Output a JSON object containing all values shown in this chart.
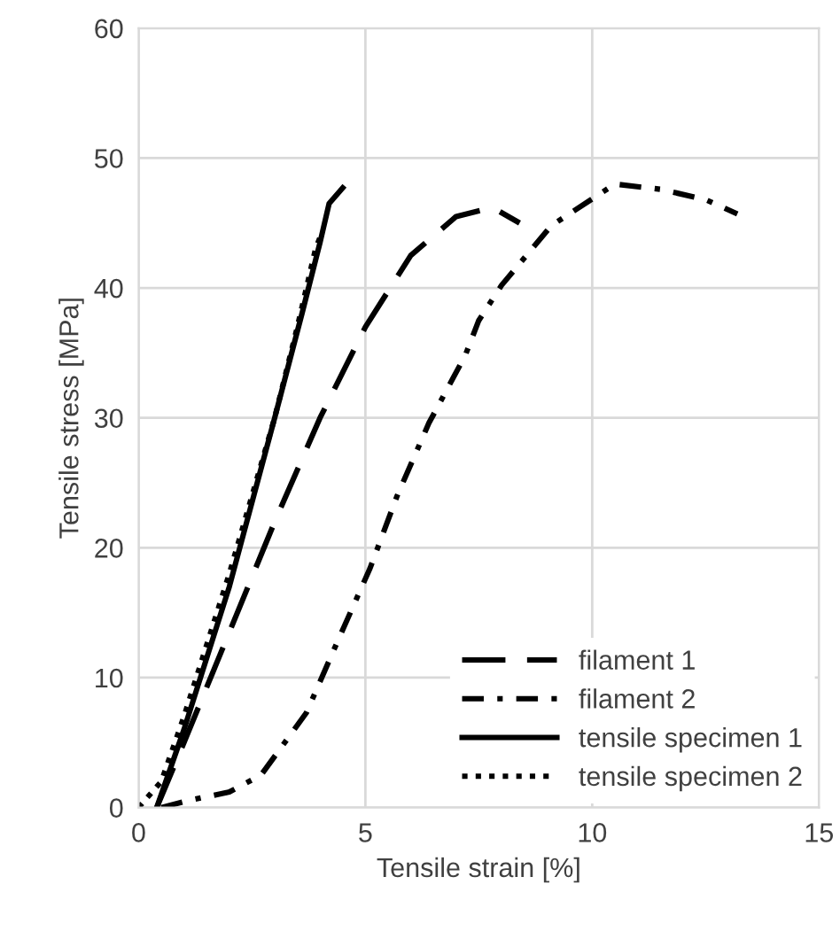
{
  "chart_data": {
    "type": "line",
    "xlabel": "Tensile strain [%]",
    "ylabel": "Tensile stress [MPa]",
    "xlim": [
      0,
      15
    ],
    "xticks": [
      0,
      5,
      10,
      15
    ],
    "ylim": [
      0,
      60
    ],
    "yticks": [
      0,
      10,
      20,
      30,
      40,
      50,
      60
    ],
    "grid": true,
    "legend": "bottom right",
    "series": [
      {
        "name": "filament 1",
        "color": "#000000",
        "line_style": "dashed",
        "x": [
          0.4,
          1,
          2,
          3,
          4,
          5,
          6,
          7,
          7.8,
          8.4
        ],
        "values": [
          0,
          5,
          13.5,
          22,
          30,
          37,
          42.5,
          45.5,
          46.2,
          45
        ]
      },
      {
        "name": "filament 2",
        "color": "#000000",
        "line_style": "dashdot",
        "x": [
          0.5,
          1.05,
          2,
          2.7,
          3.7,
          4.4,
          5.1,
          5.7,
          6.4,
          7.2,
          7.5,
          8.0,
          9.1,
          10.5,
          11.5,
          12.5,
          13.2
        ],
        "values": [
          0,
          0.5,
          1.2,
          2.5,
          7.3,
          12.9,
          18.4,
          24,
          29.6,
          34.8,
          37.5,
          40.2,
          44.8,
          48,
          47.6,
          46.8,
          45.7
        ]
      },
      {
        "name": "tensile specimen 1",
        "color": "#000000",
        "line_style": "solid",
        "x": [
          0.4,
          1,
          2,
          3,
          3.6,
          4,
          4.2,
          4.5
        ],
        "values": [
          0,
          6,
          17,
          30,
          38,
          43.5,
          46.5,
          47.7
        ]
      },
      {
        "name": "tensile specimen 2",
        "color": "#000000",
        "line_style": "dotted",
        "x": [
          0,
          0.5,
          1,
          2,
          3,
          3.5,
          3.9,
          4.0
        ],
        "values": [
          0,
          2,
          7,
          18,
          30,
          37,
          43,
          43.9
        ]
      }
    ]
  }
}
